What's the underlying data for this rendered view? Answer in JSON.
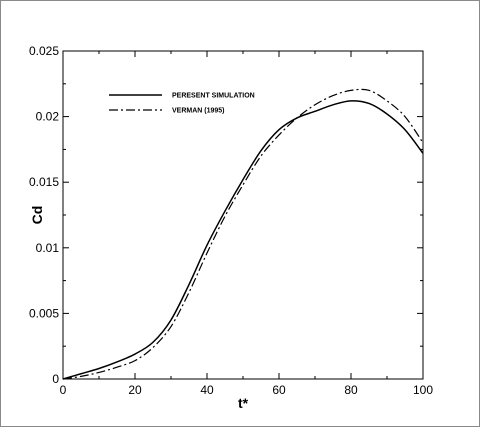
{
  "chart_data": {
    "type": "line",
    "xlabel": "t*",
    "ylabel": "Cd",
    "xlim": [
      0,
      100
    ],
    "ylim": [
      0,
      0.025
    ],
    "xticks": [
      0,
      20,
      40,
      60,
      80,
      100
    ],
    "yticks": [
      0,
      0.005,
      0.01,
      0.015,
      0.02,
      0.025
    ],
    "xtick_labels": [
      "0",
      "20",
      "40",
      "60",
      "80",
      "100"
    ],
    "ytick_labels": [
      "0",
      "0.005",
      "0.01",
      "0.015",
      "0.02",
      "0.025"
    ],
    "grid": false,
    "legend_position": "top-left",
    "series": [
      {
        "name": "PERESENT SIMULATION",
        "style": "solid",
        "x": [
          0,
          5,
          10,
          15,
          20,
          25,
          30,
          35,
          40,
          45,
          50,
          55,
          60,
          65,
          70,
          75,
          80,
          85,
          90,
          95,
          100
        ],
        "y": [
          0,
          0.0004,
          0.0008,
          0.0013,
          0.0019,
          0.0028,
          0.0045,
          0.0072,
          0.0102,
          0.0128,
          0.0152,
          0.0174,
          0.019,
          0.0199,
          0.0204,
          0.0209,
          0.0212,
          0.021,
          0.0202,
          0.019,
          0.0172
        ]
      },
      {
        "name": "VERMAN (1995)",
        "style": "dashdot",
        "x": [
          0,
          5,
          10,
          15,
          20,
          25,
          30,
          35,
          40,
          45,
          50,
          55,
          60,
          65,
          70,
          75,
          80,
          85,
          90,
          95,
          100
        ],
        "y": [
          0,
          0.0002,
          0.0005,
          0.0009,
          0.0014,
          0.0024,
          0.004,
          0.0066,
          0.0096,
          0.0124,
          0.0148,
          0.017,
          0.0186,
          0.0199,
          0.0209,
          0.0216,
          0.022,
          0.022,
          0.0212,
          0.02,
          0.018
        ]
      }
    ]
  }
}
